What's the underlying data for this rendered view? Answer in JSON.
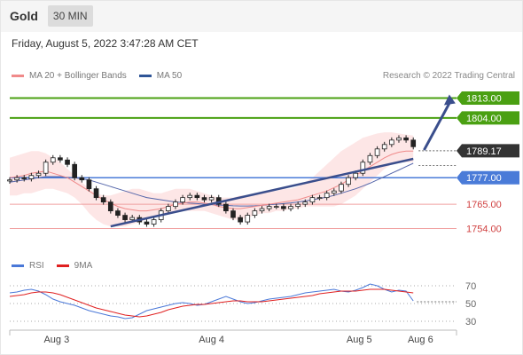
{
  "header": {
    "title": "Gold",
    "interval": "30 MIN"
  },
  "timestamp": "Friday, August 5, 2022 3:47:28 AM CET",
  "credit": "Research © 2022 Trading Central",
  "legend": [
    {
      "label": "MA 20 + Bollinger Bands",
      "color": "#f08a8a"
    },
    {
      "label": "MA 50",
      "color": "#2f5597"
    }
  ],
  "rsi_legend": [
    {
      "label": "RSI",
      "color": "#4a78d8"
    },
    {
      "label": "9MA",
      "color": "#e02020"
    }
  ],
  "colors": {
    "up": "#ffffff",
    "down": "#222222",
    "band_fill": "#fde2e2",
    "ma20": "#f08a8a",
    "ma50": "#5566aa",
    "trend": "#3a4e8c",
    "target": "#4aa012",
    "pivot": "#4a7bd8",
    "support": "#f0a0a0",
    "rsi": "#4a78d8",
    "rsi_ma": "#e02020"
  },
  "chart_data": [
    {
      "type": "candlestick",
      "title": "Gold",
      "x_ticks": [
        "Aug 3",
        "Aug 4",
        "Aug 5",
        "Aug 6"
      ],
      "ylim": [
        1747,
        1818
      ],
      "last_price": 1789.17,
      "levels": [
        {
          "label": "1813.00",
          "value": 1813.0,
          "kind": "target"
        },
        {
          "label": "1804.00",
          "value": 1804.0,
          "kind": "target"
        },
        {
          "label": "1789.17",
          "value": 1789.17,
          "kind": "current"
        },
        {
          "label": "1777.00",
          "value": 1777.0,
          "kind": "pivot"
        },
        {
          "label": "1765.00",
          "value": 1765.0,
          "kind": "support"
        },
        {
          "label": "1754.00",
          "value": 1754.0,
          "kind": "support"
        }
      ],
      "trendline": [
        [
          14,
          1755
        ],
        [
          56,
          1785.5
        ]
      ],
      "projection": [
        [
          57.5,
          1789.5
        ],
        [
          61,
          1813
        ]
      ],
      "candles_close": [
        1776,
        1777,
        1776.5,
        1778,
        1779,
        1784,
        1786,
        1785,
        1783,
        1777,
        1776,
        1772,
        1768,
        1766,
        1762,
        1760,
        1758,
        1759,
        1757,
        1756,
        1758,
        1762,
        1764,
        1766,
        1768,
        1769,
        1768,
        1767,
        1768,
        1765,
        1762,
        1759,
        1757,
        1760,
        1762,
        1763,
        1764,
        1764,
        1763,
        1764,
        1765,
        1766,
        1768,
        1768,
        1770,
        1771,
        1774,
        1777,
        1779,
        1784,
        1787,
        1790,
        1792,
        1794,
        1795,
        1794,
        1791
      ],
      "ma20": [
        1777,
        1777.5,
        1778,
        1779,
        1779.5,
        1780,
        1779,
        1778,
        1777,
        1775,
        1773,
        1771,
        1769,
        1767,
        1765.5,
        1764,
        1763,
        1762.5,
        1762,
        1762,
        1762.5,
        1763,
        1764,
        1765,
        1765.5,
        1766,
        1766,
        1765.5,
        1765,
        1764,
        1763.5,
        1763,
        1763,
        1763.5,
        1764,
        1764.5,
        1765,
        1765.5,
        1766,
        1766.5,
        1767,
        1768,
        1769,
        1770,
        1771,
        1772.5,
        1774,
        1776,
        1778,
        1780,
        1782,
        1784,
        1786,
        1787.5,
        1788.5,
        1789,
        1789
      ],
      "ma50": [
        1775,
        1775.5,
        1776,
        1776.5,
        1777,
        1777.5,
        1777.5,
        1777.5,
        1777.2,
        1777,
        1776.5,
        1776,
        1775,
        1774,
        1773,
        1772,
        1771,
        1770,
        1769,
        1768,
        1767.5,
        1767,
        1766.5,
        1766,
        1765.8,
        1765.5,
        1765.3,
        1765,
        1764.8,
        1764.6,
        1764.5,
        1764.3,
        1764.2,
        1764.2,
        1764.3,
        1764.5,
        1764.8,
        1765,
        1765.3,
        1765.6,
        1766,
        1766.5,
        1767,
        1767.6,
        1768.2,
        1769,
        1770,
        1771,
        1772,
        1773.2,
        1774.5,
        1776,
        1777.5,
        1779,
        1780.5,
        1782,
        1783.5
      ],
      "bb_upper": [
        1786,
        1787,
        1788,
        1789,
        1789,
        1788,
        1786,
        1784,
        1781,
        1778,
        1775,
        1772,
        1770,
        1769,
        1769,
        1770,
        1771,
        1772,
        1772,
        1771,
        1770,
        1770,
        1771,
        1772,
        1772,
        1772,
        1771,
        1770,
        1769,
        1768,
        1768,
        1768,
        1769,
        1769,
        1770,
        1770,
        1771,
        1771,
        1772,
        1772,
        1773,
        1775,
        1777,
        1780,
        1783,
        1786,
        1789,
        1791,
        1793,
        1795,
        1796,
        1797,
        1797.5,
        1797.5,
        1797,
        1796.5,
        1796
      ],
      "bb_lower": [
        1769,
        1769,
        1770,
        1770,
        1771,
        1772,
        1772,
        1771,
        1770,
        1768,
        1765,
        1761,
        1758,
        1756,
        1755,
        1755,
        1755,
        1756,
        1757,
        1758,
        1759,
        1760,
        1761,
        1762,
        1762,
        1762,
        1762,
        1762,
        1761,
        1760,
        1759,
        1758,
        1758,
        1759,
        1760,
        1761,
        1761,
        1762,
        1762,
        1763,
        1763,
        1764,
        1764,
        1764,
        1764,
        1764,
        1765,
        1767,
        1769,
        1772,
        1775,
        1778,
        1781,
        1783,
        1784,
        1784,
        1784
      ]
    },
    {
      "type": "line",
      "title": "RSI",
      "y_ticks": [
        "70",
        "50",
        "30"
      ],
      "ylim": [
        20,
        80
      ],
      "series": [
        {
          "name": "RSI",
          "values": [
            62,
            63,
            65,
            66,
            64,
            60,
            55,
            52,
            50,
            48,
            45,
            42,
            40,
            38,
            36,
            35,
            33,
            34,
            38,
            42,
            44,
            46,
            48,
            50,
            51,
            50,
            48,
            49,
            52,
            55,
            58,
            55,
            52,
            50,
            51,
            53,
            55,
            56,
            57,
            58,
            60,
            62,
            63,
            64,
            65,
            66,
            64,
            63,
            65,
            68,
            72,
            70,
            66,
            63,
            65,
            64,
            53
          ]
        },
        {
          "name": "9MA",
          "values": [
            58,
            59,
            60,
            62,
            63,
            63,
            62,
            60,
            57,
            54,
            51,
            48,
            45,
            43,
            41,
            39,
            37,
            36,
            35,
            36,
            38,
            40,
            43,
            45,
            47,
            48,
            49,
            49,
            50,
            51,
            52,
            53,
            53,
            52,
            52,
            52,
            53,
            54,
            55,
            56,
            57,
            58,
            59,
            61,
            62,
            63,
            64,
            64,
            64,
            65,
            66,
            66,
            66,
            65,
            64,
            63,
            62
          ]
        }
      ]
    }
  ]
}
